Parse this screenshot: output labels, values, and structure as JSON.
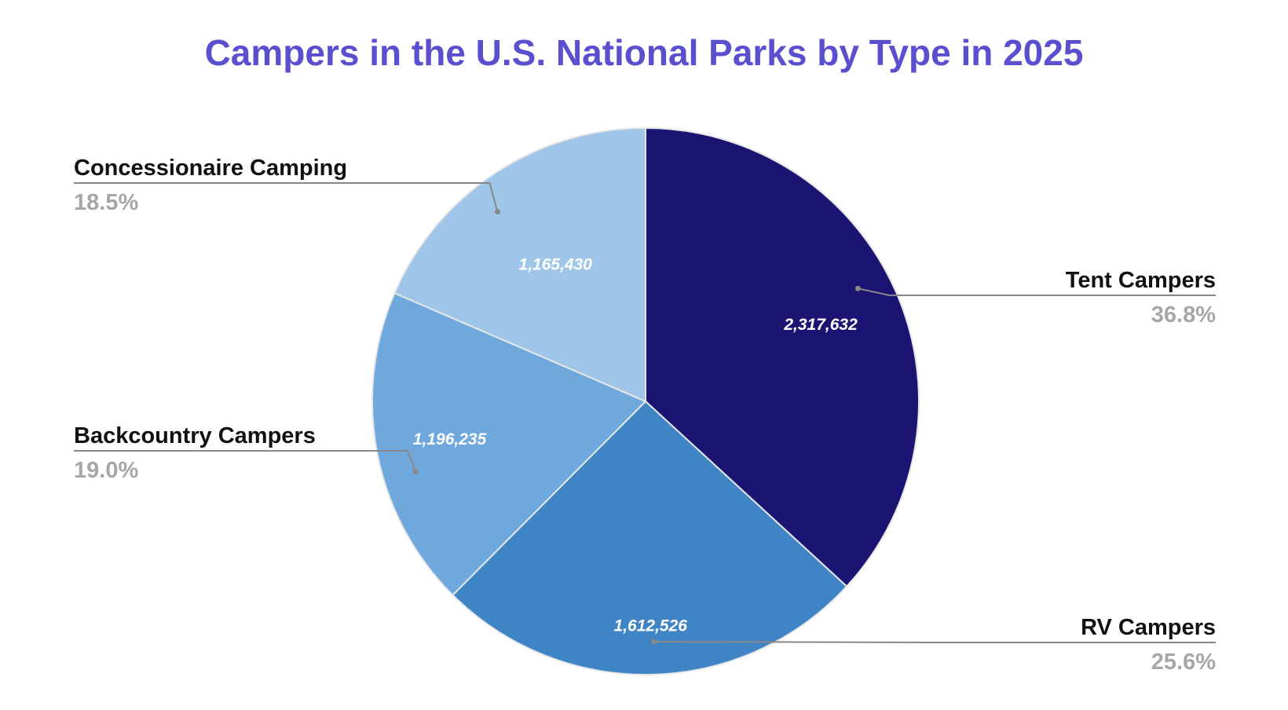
{
  "chart_data": {
    "type": "pie",
    "title": "Campers in the U.S. National Parks by Type in 2025",
    "start_angle_deg": 0,
    "direction": "clockwise",
    "slices": [
      {
        "label": "Tent Campers",
        "value": 2317632,
        "value_label": "2,317,632",
        "percent_label": "36.8%",
        "color": "#1b1472"
      },
      {
        "label": "RV Campers",
        "value": 1612526,
        "value_label": "1,612,526",
        "percent_label": "25.6%",
        "color": "#3f85c6"
      },
      {
        "label": "Backcountry Campers",
        "value": 1196235,
        "value_label": "1,196,235",
        "percent_label": "19.0%",
        "color": "#6fa8dc"
      },
      {
        "label": "Concessionaire Camping",
        "value": 1165430,
        "value_label": "1,165,430",
        "percent_label": "18.5%",
        "color": "#9fc5e8"
      }
    ],
    "legend": "callout labels beside slices"
  }
}
